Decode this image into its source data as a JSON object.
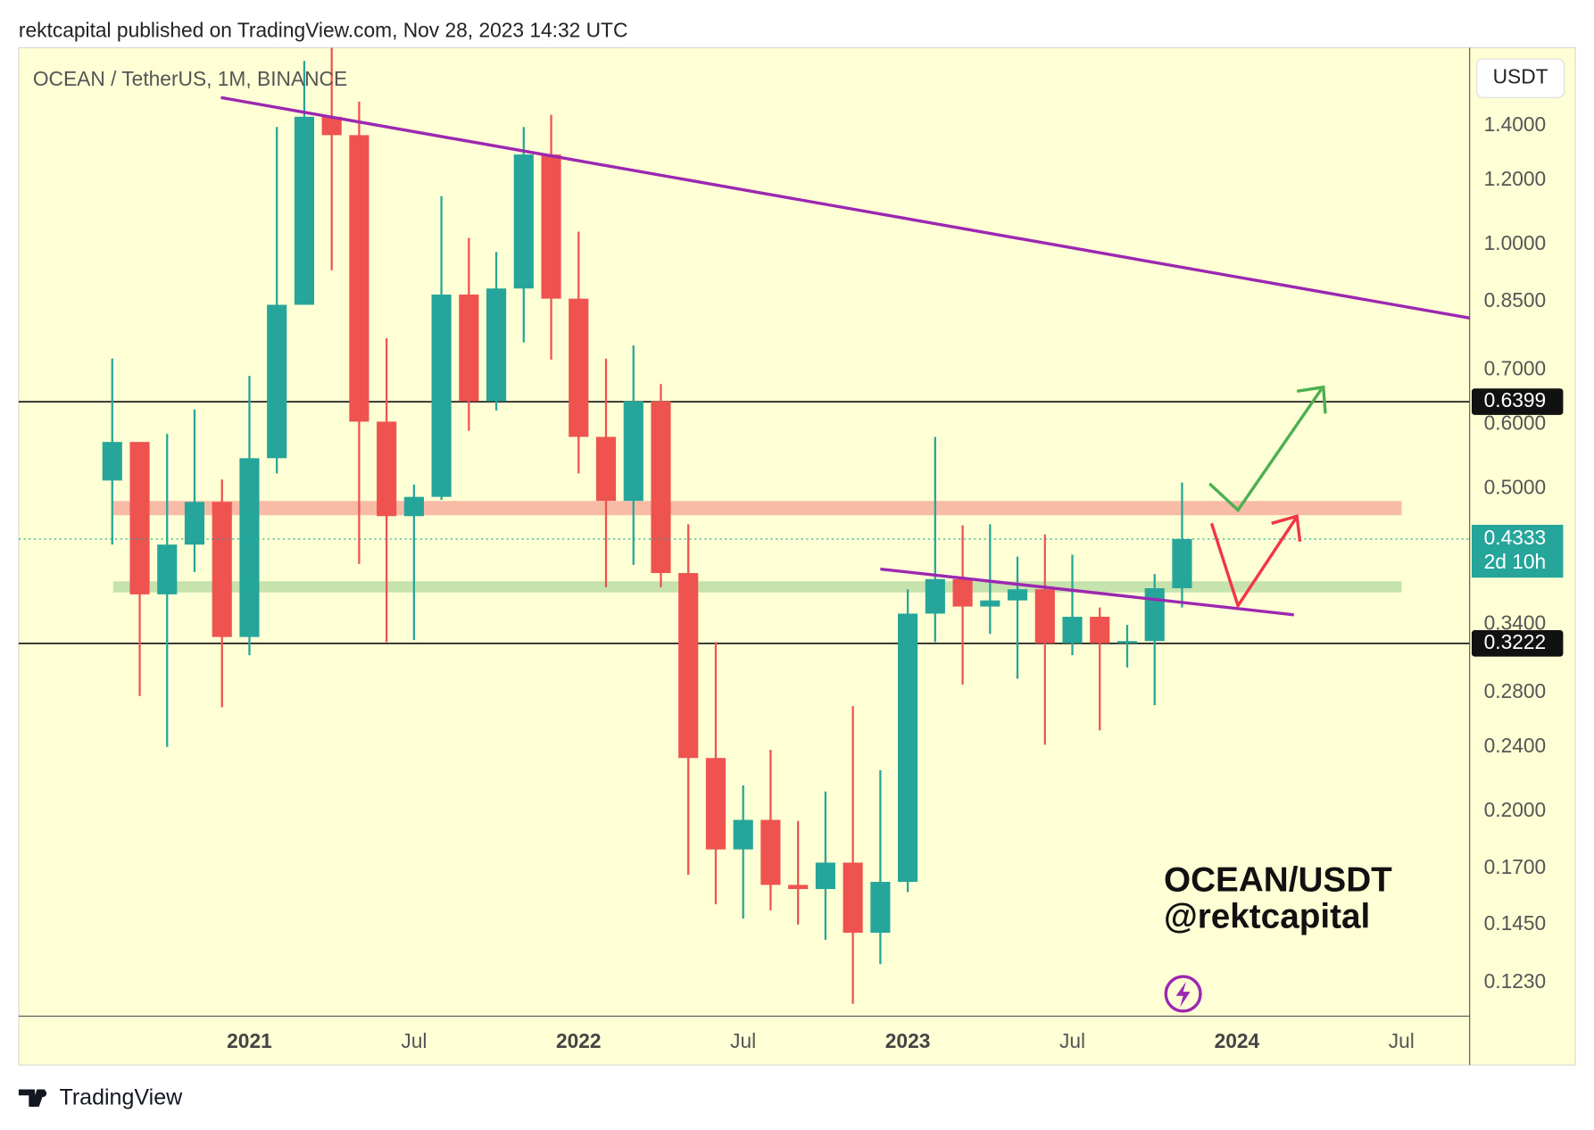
{
  "header": "rektcapital published on TradingView.com, Nov 28, 2023 14:32 UTC",
  "footer": "TradingView",
  "chart_data": {
    "type": "candlestick",
    "title": "OCEAN / TetherUS, 1M, BINANCE",
    "currency": "USDT",
    "annotations": [
      "OCEAN/USDT",
      "@rektcapital"
    ],
    "countdown": "2d 10h",
    "up_color": "#26a69a",
    "down_color": "#ef5350",
    "log_scale": true,
    "grid": false,
    "x": [
      2020.5833,
      2020.6667,
      2020.75,
      2020.8333,
      2020.9167,
      2021.0,
      2021.0833,
      2021.1667,
      2021.25,
      2021.3333,
      2021.4167,
      2021.5,
      2021.5833,
      2021.6667,
      2021.75,
      2021.8333,
      2021.9167,
      2022.0,
      2022.0833,
      2022.1667,
      2022.25,
      2022.3333,
      2022.4167,
      2022.5,
      2022.5833,
      2022.6667,
      2022.75,
      2022.8333,
      2022.9167,
      2023.0,
      2023.0833,
      2023.1667,
      2023.25,
      2023.3333,
      2023.4167,
      2023.5,
      2023.5833,
      2023.6667,
      2023.75,
      2023.8333
    ],
    "open": [
      0.5116,
      0.5708,
      0.3703,
      0.4265,
      0.4815,
      0.3281,
      0.5451,
      0.8426,
      1.437,
      1.364,
      0.6047,
      0.4624,
      0.4884,
      0.8674,
      0.6406,
      0.8825,
      1.291,
      0.8574,
      0.5791,
      0.4829,
      0.6406,
      0.3934,
      0.2327,
      0.1795,
      0.1952,
      0.1623,
      0.1604,
      0.1729,
      0.1417,
      0.1637,
      0.3506,
      0.3867,
      0.3577,
      0.364,
      0.3757,
      0.3224,
      0.3475,
      0.3224,
      0.3243,
      0.3768
    ],
    "high": [
      0.7232,
      0.5708,
      0.5842,
      0.626,
      0.5131,
      0.6885,
      1.396,
      1.684,
      1.748,
      1.5,
      0.7661,
      0.5057,
      1.147,
      1.019,
      0.979,
      1.396,
      1.445,
      1.037,
      0.7232,
      0.7508,
      0.6728,
      0.4518,
      0.3234,
      0.2153,
      0.2381,
      0.1946,
      0.2116,
      0.2696,
      0.2248,
      0.3757,
      0.5791,
      0.4505,
      0.4518,
      0.412,
      0.439,
      0.4144,
      0.3567,
      0.3396,
      0.3923,
      0.5086
    ],
    "low": [
      0.4265,
      0.2775,
      0.2402,
      0.3946,
      0.2688,
      0.3115,
      0.522,
      0.8426,
      0.9295,
      0.4038,
      0.3234,
      0.3252,
      0.4843,
      0.5893,
      0.6242,
      0.7573,
      0.7211,
      0.522,
      0.3778,
      0.4026,
      0.3778,
      0.167,
      0.1536,
      0.1475,
      0.151,
      0.145,
      0.1389,
      0.1158,
      0.1296,
      0.159,
      0.3234,
      0.2865,
      0.3309,
      0.2914,
      0.2416,
      0.3115,
      0.2516,
      0.3009,
      0.2704,
      0.3567
    ],
    "close": [
      0.5708,
      0.3703,
      0.4265,
      0.4815,
      0.3281,
      0.5451,
      0.8426,
      1.437,
      1.364,
      0.6047,
      0.4624,
      0.4884,
      0.8674,
      0.6406,
      0.8825,
      1.291,
      0.8574,
      0.5791,
      0.4829,
      0.6406,
      0.3934,
      0.2327,
      0.1795,
      0.1952,
      0.1623,
      0.1604,
      0.1729,
      0.1417,
      0.1637,
      0.3506,
      0.3867,
      0.3577,
      0.364,
      0.3757,
      0.3224,
      0.3475,
      0.3224,
      0.3243,
      0.3768,
      0.4333
    ],
    "levels": [
      {
        "value": 0.6399,
        "label": "0.6399"
      },
      {
        "value": 0.3222,
        "label": "0.3222"
      }
    ],
    "xlim": [
      2020.299,
      2024.707
    ],
    "ylim": [
      0.1118,
      1.748
    ],
    "xticks": [
      {
        "value": 2021,
        "label": "2021"
      },
      {
        "value": 2021.5,
        "label": "Jul"
      },
      {
        "value": 2022,
        "label": "2022"
      },
      {
        "value": 2022.5,
        "label": "Jul"
      },
      {
        "value": 2023,
        "label": "2023"
      },
      {
        "value": 2023.5,
        "label": "Jul"
      },
      {
        "value": 2024,
        "label": "2024"
      },
      {
        "value": 2024.5,
        "label": "Jul"
      }
    ],
    "yticks": [
      {
        "value": 1.4,
        "label": "1.4000"
      },
      {
        "value": 1.2,
        "label": "1.2000"
      },
      {
        "value": 1.0,
        "label": "1.0000"
      },
      {
        "value": 0.85,
        "label": "0.8500"
      },
      {
        "value": 0.7,
        "label": "0.7000"
      },
      {
        "value": 0.6,
        "label": "0.6000"
      },
      {
        "value": 0.5,
        "label": "0.5000"
      },
      {
        "value": 0.34,
        "label": "0.3400"
      },
      {
        "value": 0.28,
        "label": "0.2800"
      },
      {
        "value": 0.24,
        "label": "0.2400"
      },
      {
        "value": 0.2,
        "label": "0.2000"
      },
      {
        "value": 0.17,
        "label": "0.1700"
      },
      {
        "value": 0.145,
        "label": "0.1450"
      },
      {
        "value": 0.123,
        "label": "0.1230"
      }
    ]
  }
}
